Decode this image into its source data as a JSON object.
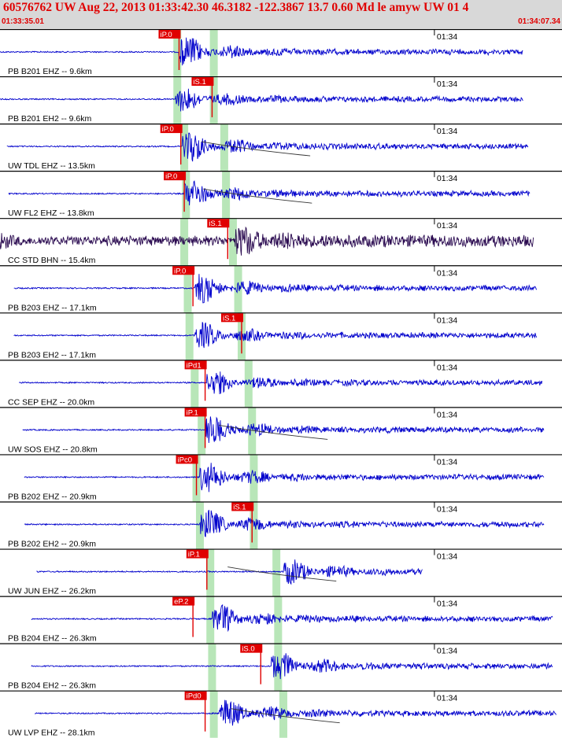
{
  "header": {
    "title": "60576762 UW Aug 22, 2013 01:33:42.30   46.3182 -122.3867 13.7 0.60 Md le amyw UW 01   4",
    "start_time": "01:33:35.01",
    "end_time": "01:34:07.34"
  },
  "colors": {
    "trace": "#0000cc",
    "trace_broadband": "#2a0a50",
    "pick": "#e00000",
    "window": "#b8e6b8",
    "divider": "#000000",
    "header_bg": "#d8d8d8"
  },
  "chart_data": {
    "type": "seismogram",
    "time_range_s": [
      0,
      32.33
    ],
    "tick_label": "01:34",
    "tick_time_s": 24.99,
    "traces": [
      {
        "label": "PB B201 EHZ -- 9.6km",
        "pick": "iP.0",
        "pick_time_s": 10.3,
        "start_s": 0,
        "end_s": 30.1,
        "onset_s": 10.3,
        "amp": 0.9,
        "bb": false,
        "p_s": 10.2,
        "s_s": 12.3,
        "tail": false
      },
      {
        "label": "PB B201 EH2 -- 9.6km",
        "pick": "iS.1",
        "pick_time_s": 12.2,
        "start_s": 0,
        "end_s": 30.1,
        "onset_s": 10.1,
        "amp": 0.7,
        "bb": false,
        "p_s": 10.2,
        "s_s": 12.3,
        "tail": false
      },
      {
        "label": "UW TDL EHZ -- 13.5km",
        "pick": "iP.0",
        "pick_time_s": 10.4,
        "start_s": 0.4,
        "end_s": 30.4,
        "onset_s": 10.5,
        "amp": 0.9,
        "bb": false,
        "p_s": 10.6,
        "s_s": 12.9,
        "tail": true
      },
      {
        "label": "UW FL2 EHZ -- 13.8km",
        "pick": "iP.0",
        "pick_time_s": 10.6,
        "start_s": 0.5,
        "end_s": 30.5,
        "onset_s": 10.6,
        "amp": 0.8,
        "bb": false,
        "p_s": 10.7,
        "s_s": 13.0,
        "tail": true
      },
      {
        "label": "CC STD BHN -- 15.4km",
        "pick": "iS.1",
        "pick_time_s": 13.1,
        "start_s": 0,
        "end_s": 30.7,
        "onset_s": 13.5,
        "amp": 0.7,
        "bb": true,
        "p_s": 10.6,
        "s_s": 13.4,
        "tail": false
      },
      {
        "label": "PB B203 EHZ -- 17.1km",
        "pick": "iP.0",
        "pick_time_s": 11.1,
        "start_s": 0.8,
        "end_s": 30.9,
        "onset_s": 11.2,
        "amp": 0.85,
        "bb": false,
        "p_s": 10.8,
        "s_s": 13.7,
        "tail": false
      },
      {
        "label": "PB B203 EH2 -- 17.1km",
        "pick": "iS.1",
        "pick_time_s": 13.9,
        "start_s": 0.8,
        "end_s": 30.9,
        "onset_s": 11.2,
        "amp": 0.75,
        "bb": false,
        "p_s": 10.9,
        "s_s": 13.9,
        "tail": false
      },
      {
        "label": "CC SEP EHZ -- 20.0km",
        "pick": "iPd1",
        "pick_time_s": 11.8,
        "start_s": 1.1,
        "end_s": 31.2,
        "onset_s": 11.9,
        "amp": 0.7,
        "bb": false,
        "p_s": 11.2,
        "s_s": 14.3,
        "tail": false
      },
      {
        "label": "UW SOS EHZ -- 20.8km",
        "pick": "iP.1",
        "pick_time_s": 11.8,
        "start_s": 1.3,
        "end_s": 31.3,
        "onset_s": 11.8,
        "amp": 0.8,
        "bb": false,
        "p_s": 11.6,
        "s_s": 14.5,
        "tail": true
      },
      {
        "label": "PB B202 EHZ -- 20.9km",
        "pick": "iPc0",
        "pick_time_s": 11.3,
        "start_s": 1.4,
        "end_s": 31.3,
        "onset_s": 11.5,
        "amp": 0.85,
        "bb": false,
        "p_s": 11.3,
        "s_s": 14.6,
        "tail": false
      },
      {
        "label": "PB B202 EH2 -- 20.9km",
        "pick": "iS.1",
        "pick_time_s": 14.5,
        "start_s": 1.4,
        "end_s": 31.3,
        "onset_s": 11.5,
        "amp": 0.85,
        "bb": false,
        "p_s": 11.5,
        "s_s": 14.6,
        "tail": false
      },
      {
        "label": "UW JUN EHZ -- 26.2km",
        "pick": "iP.1",
        "pick_time_s": 11.9,
        "start_s": 2.1,
        "end_s": 24.3,
        "onset_s": 16.3,
        "amp": 0.7,
        "bb": false,
        "p_s": 12.1,
        "s_s": 15.9,
        "tail": true
      },
      {
        "label": "PB B204 EHZ -- 26.3km",
        "pick": "eP.2",
        "pick_time_s": 11.1,
        "start_s": 1.8,
        "end_s": 31.8,
        "onset_s": 12.2,
        "amp": 0.8,
        "bb": false,
        "p_s": 12.1,
        "s_s": 16.0,
        "tail": false
      },
      {
        "label": "PB B204 EH2 -- 26.3km",
        "pick": "iS.0",
        "pick_time_s": 15.0,
        "start_s": 1.8,
        "end_s": 31.8,
        "onset_s": 15.6,
        "amp": 0.8,
        "bb": false,
        "p_s": 12.2,
        "s_s": 16.0,
        "tail": false
      },
      {
        "label": "UW LVP EHZ -- 28.1km",
        "pick": "iPd0",
        "pick_time_s": 11.8,
        "start_s": 2.0,
        "end_s": 32.0,
        "onset_s": 12.6,
        "amp": 0.85,
        "bb": false,
        "p_s": 12.3,
        "s_s": 16.3,
        "tail": true
      }
    ]
  }
}
